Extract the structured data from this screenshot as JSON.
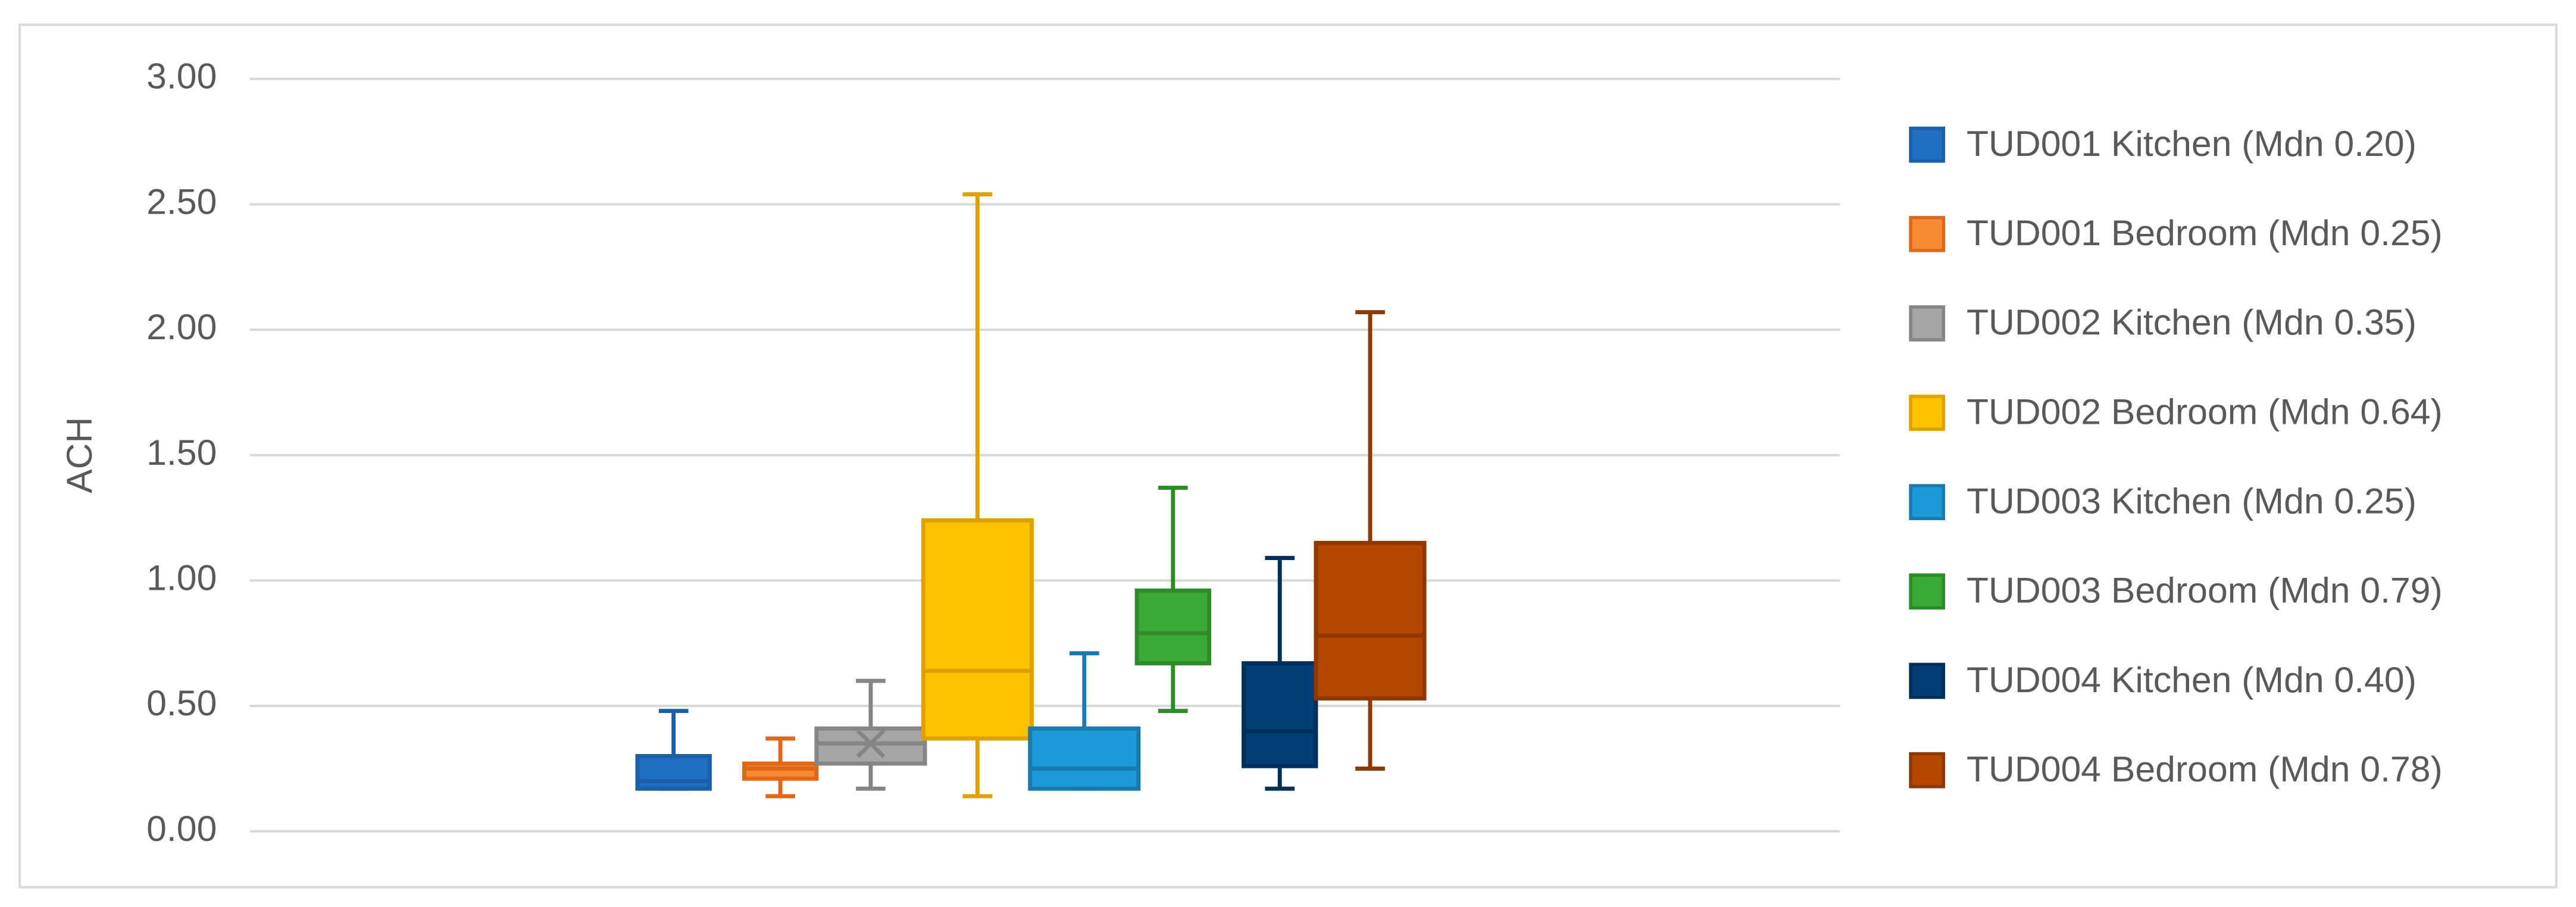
{
  "chart_data": {
    "type": "box",
    "y_label": "ACH",
    "ylim": [
      0,
      3
    ],
    "yticks": [
      {
        "value": 0,
        "label": "0.00"
      },
      {
        "value": 0.5,
        "label": "0.50"
      },
      {
        "value": 1,
        "label": "1.00"
      },
      {
        "value": 1.5,
        "label": "1.50"
      },
      {
        "value": 2,
        "label": "2.00"
      },
      {
        "value": 2.5,
        "label": "2.50"
      },
      {
        "value": 3,
        "label": "3.00"
      }
    ],
    "grid": true,
    "legend": "right",
    "series": [
      {
        "name": "TUD001 Kitchen (Mdn 0.20)",
        "color": "#1f6fc5",
        "line_color": "#1a5fa8",
        "min": 0.17,
        "q1": 0.17,
        "median": 0.2,
        "q3": 0.3,
        "max": 0.48
      },
      {
        "name": "TUD001 Bedroom (Mdn 0.25)",
        "color": "#f58a32",
        "line_color": "#e0661a",
        "min": 0.14,
        "q1": 0.21,
        "median": 0.25,
        "q3": 0.27,
        "max": 0.37
      },
      {
        "name": "TUD002 Kitchen (Mdn 0.35)",
        "color": "#a5a5a5",
        "line_color": "#858585",
        "min": 0.17,
        "q1": 0.27,
        "median": 0.35,
        "q3": 0.41,
        "max": 0.6,
        "mean": 0.35
      },
      {
        "name": "TUD002 Bedroom (Mdn 0.64)",
        "color": "#ffc000",
        "line_color": "#e0a000",
        "min": 0.14,
        "q1": 0.37,
        "median": 0.64,
        "q3": 1.24,
        "max": 2.54
      },
      {
        "name": "TUD003 Kitchen (Mdn 0.25)",
        "color": "#1f9ad9",
        "line_color": "#1a7ab0",
        "min": 0.17,
        "q1": 0.17,
        "median": 0.25,
        "q3": 0.41,
        "max": 0.71
      },
      {
        "name": "TUD003 Bedroom (Mdn 0.79)",
        "color": "#3aa935",
        "line_color": "#2e8a2a",
        "min": 0.48,
        "q1": 0.67,
        "median": 0.79,
        "q3": 0.96,
        "max": 1.37
      },
      {
        "name": "TUD004 Kitchen (Mdn 0.40)",
        "color": "#003e75",
        "line_color": "#002f5a",
        "min": 0.17,
        "q1": 0.26,
        "median": 0.4,
        "q3": 0.67,
        "max": 1.09
      },
      {
        "name": "TUD004 Bedroom (Mdn 0.78)",
        "color": "#b44600",
        "line_color": "#8f3800",
        "min": 0.25,
        "q1": 0.53,
        "median": 0.78,
        "q3": 1.15,
        "max": 2.07
      }
    ]
  }
}
